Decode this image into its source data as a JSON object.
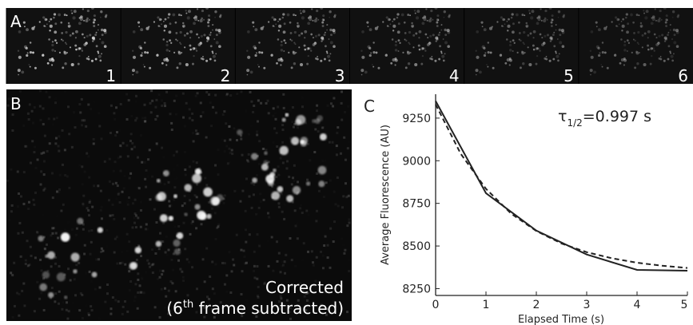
{
  "panels": {
    "a": {
      "label": "A",
      "frames": [
        "1",
        "2",
        "3",
        "4",
        "5",
        "6"
      ]
    },
    "b": {
      "label": "B",
      "caption_line1": "Corrected",
      "caption_line2": {
        "before": "(6",
        "superscript": "th",
        "after": " frame subtracted)"
      }
    },
    "c": {
      "label": "C"
    }
  },
  "chart_data": {
    "type": "line",
    "x_label": "Elapsed Time (s)",
    "y_label": "Average Fluorescence (AU)",
    "annotation": {
      "symbol": "τ",
      "subscript": "1/2",
      "text": "=0.997 s"
    },
    "xlim": [
      0,
      5
    ],
    "xticks": [
      0,
      1,
      2,
      3,
      4,
      5
    ],
    "ylim": [
      8210,
      9390
    ],
    "yticks": [
      8250,
      8500,
      8750,
      9000,
      9250
    ],
    "series": [
      {
        "color": "#222222",
        "dash": false,
        "x": [
          0,
          1,
          2,
          3,
          4,
          5
        ],
        "values": [
          9350,
          8810,
          8590,
          8450,
          8360,
          8355
        ]
      },
      {
        "color": "#222222",
        "dash": true,
        "x": [
          0,
          0.5,
          1,
          1.5,
          2,
          2.5,
          3,
          3.5,
          4,
          4.5,
          5
        ],
        "values": [
          9330,
          9040,
          8835,
          8690,
          8588,
          8515,
          8464,
          8428,
          8402,
          8384,
          8371
        ]
      }
    ]
  }
}
